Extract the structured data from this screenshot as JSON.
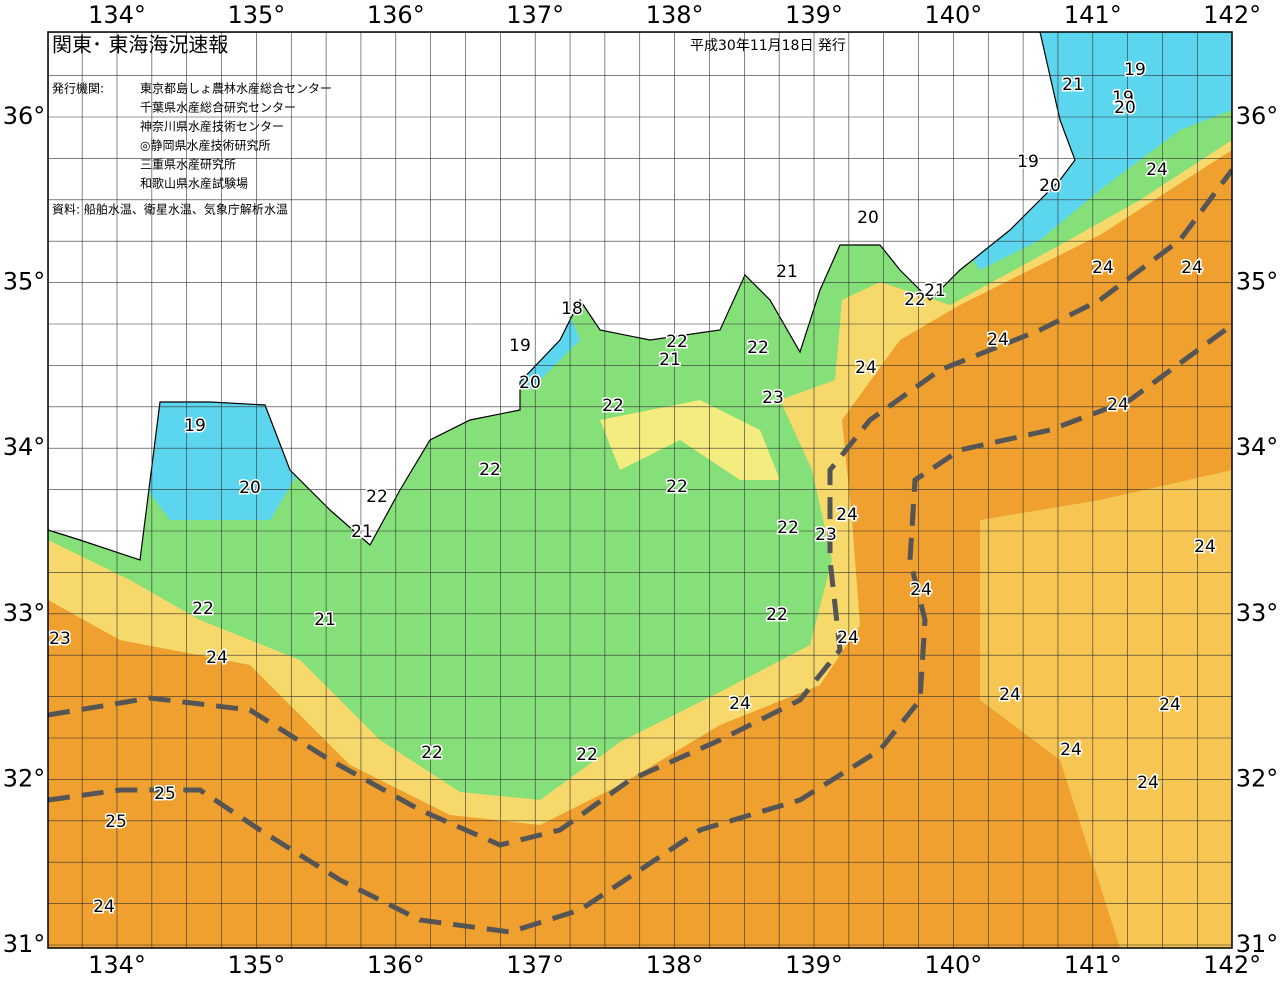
{
  "header": {
    "title": "関東･ 東海海況速報",
    "date": "平成30年11月18日 発行",
    "issuer_label": "発行機関:",
    "issuers": [
      "東京都島しょ農林水産総合センター",
      "千葉県水産総合研究センター",
      "神奈川県水産技術センター",
      "◎静岡県水産技術研究所",
      "三重県水産研究所",
      "和歌山県水産試験場"
    ],
    "source": "資料: 船舶水温、衛星水温、気象庁解析水温"
  },
  "map": {
    "lon_labels": [
      "134°",
      "135°",
      "136°",
      "137°",
      "138°",
      "139°",
      "140°",
      "141°",
      "142°"
    ],
    "lat_labels": [
      "36°",
      "35°",
      "34°",
      "33°",
      "32°",
      "31°"
    ],
    "contour_labels": [
      19,
      21,
      19,
      20,
      19,
      20,
      24,
      20,
      24,
      24,
      21,
      22,
      21,
      18,
      19,
      22,
      21,
      22,
      24,
      24,
      20,
      23,
      22,
      24,
      19,
      22,
      22,
      20,
      22,
      24,
      21,
      22,
      23,
      24,
      24,
      22,
      21,
      22,
      24,
      23,
      24,
      24,
      24,
      24,
      22,
      22,
      24,
      24,
      25,
      25,
      24
    ]
  }
}
